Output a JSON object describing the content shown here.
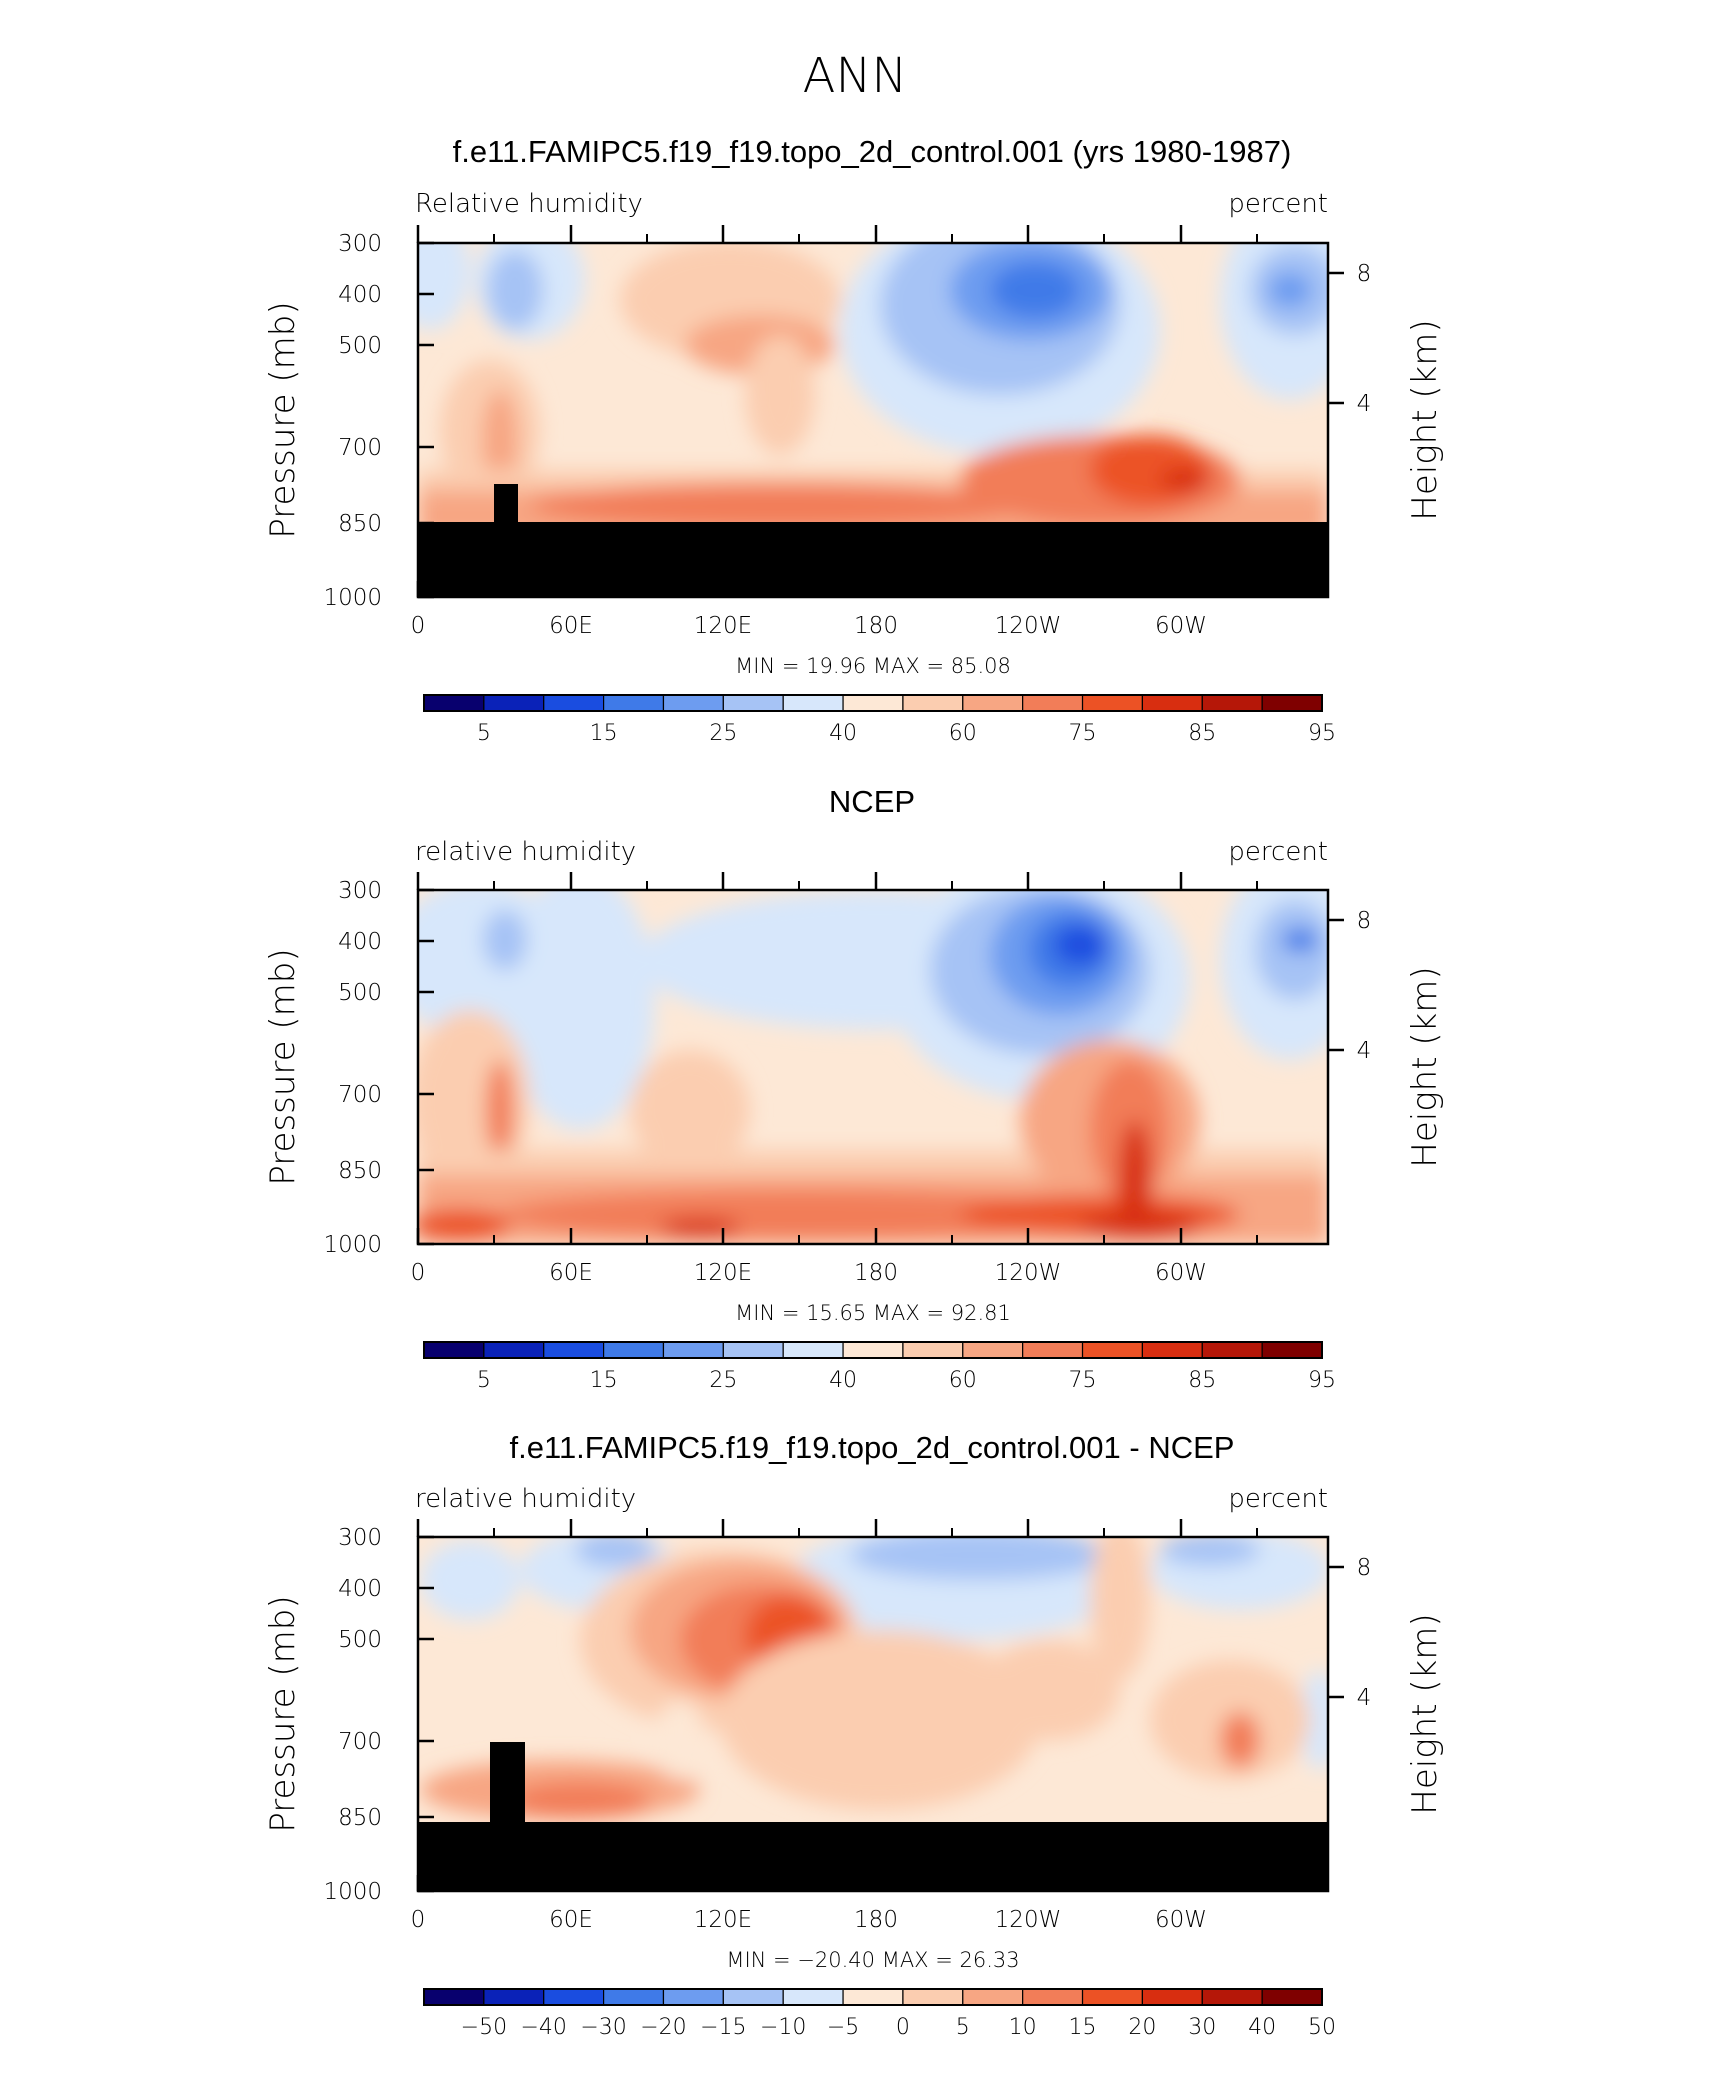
{
  "figure": {
    "main_title": "ANN"
  },
  "colors": {
    "topo": "#000000",
    "palette": [
      "#08006e",
      "#0a22b8",
      "#1a4de0",
      "#3f7ae8",
      "#6d9cf0",
      "#a6c3f5",
      "#d7e7fb",
      "#fde8d6",
      "#fbcdb0",
      "#f7a683",
      "#f27d58",
      "#ec5225",
      "#d82e10",
      "#b51708",
      "#7f0000"
    ]
  },
  "chart_data": [
    {
      "type": "contour",
      "title": "f.e11.FAMIPC5.f19_f19.topo_2d_control.001 (yrs 1980-1987)",
      "left_string": "Relative  humidity",
      "right_string": "percent",
      "ylabel": "Pressure  (mb)",
      "ylabel_right": "Height  (km)",
      "x_ticks": [
        "0",
        "60E",
        "120E",
        "180",
        "120W",
        "60W"
      ],
      "y_ticks": [
        "300",
        "400",
        "500",
        "700",
        "850",
        "1000"
      ],
      "y_right_ticks": [
        "8",
        "4"
      ],
      "stats": "MIN  =   19.96   MAX  =   85.08",
      "min": 19.96,
      "max": 85.08,
      "colorbar_labels": [
        "5",
        "15",
        "25",
        "40",
        "60",
        "75",
        "85",
        "95"
      ],
      "levels": [
        5,
        10,
        15,
        20,
        25,
        30,
        40,
        50,
        60,
        70,
        75,
        80,
        85,
        90,
        95
      ],
      "topography": true
    },
    {
      "type": "contour",
      "title": "NCEP",
      "left_string": "relative  humidity",
      "right_string": "percent",
      "ylabel": "Pressure  (mb)",
      "ylabel_right": "Height  (km)",
      "x_ticks": [
        "0",
        "60E",
        "120E",
        "180",
        "120W",
        "60W"
      ],
      "y_ticks": [
        "300",
        "400",
        "500",
        "700",
        "850",
        "1000"
      ],
      "y_right_ticks": [
        "8",
        "4"
      ],
      "stats": "MIN  =   15.65   MAX  =   92.81",
      "min": 15.65,
      "max": 92.81,
      "colorbar_labels": [
        "5",
        "15",
        "25",
        "40",
        "60",
        "75",
        "85",
        "95"
      ],
      "levels": [
        5,
        10,
        15,
        20,
        25,
        30,
        40,
        50,
        60,
        70,
        75,
        80,
        85,
        90,
        95
      ],
      "topography": false
    },
    {
      "type": "contour",
      "title": "f.e11.FAMIPC5.f19_f19.topo_2d_control.001 - NCEP",
      "left_string": "relative  humidity",
      "right_string": "percent",
      "ylabel": "Pressure  (mb)",
      "ylabel_right": "Height  (km)",
      "x_ticks": [
        "0",
        "60E",
        "120E",
        "180",
        "120W",
        "60W"
      ],
      "y_ticks": [
        "300",
        "400",
        "500",
        "700",
        "850",
        "1000"
      ],
      "y_right_ticks": [
        "8",
        "4"
      ],
      "stats": "MIN  =  −20.40   MAX  =   26.33",
      "min": -20.4,
      "max": 26.33,
      "colorbar_labels": [
        "−50",
        "−40",
        "−30",
        "−20",
        "−15",
        "−10",
        "−5",
        "0",
        "5",
        "10",
        "15",
        "20",
        "30",
        "40",
        "50"
      ],
      "levels": [
        -50,
        -40,
        -30,
        -20,
        -15,
        -10,
        -5,
        0,
        5,
        10,
        15,
        20,
        30,
        40,
        50
      ],
      "topography": true
    }
  ]
}
